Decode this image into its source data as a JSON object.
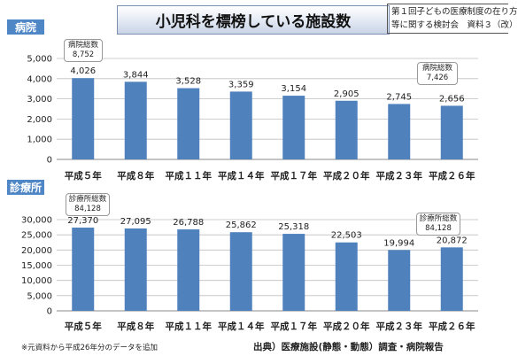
{
  "title": "小児科を標榜している施設数",
  "meeting_note": {
    "line1": "第１回子どもの医療制度の在り方",
    "line2": "等に関する検討会　資料３（改）"
  },
  "colors": {
    "bar": "#4f81bd",
    "label_bg": "#4f86c6",
    "grid": "#bfbfbf"
  },
  "callouts": {
    "hospital_first": {
      "title": "病院総数",
      "value": "8,752"
    },
    "hospital_last": {
      "title": "病院総数",
      "value": "7,426"
    },
    "clinic_first": {
      "title": "診療所総数",
      "value": "84,128"
    },
    "clinic_last": {
      "title": "診療所総数",
      "value": "84,128"
    }
  },
  "footnote": "※元資料から平成26年分のデータを追加",
  "source": "出典）医療施設(静態・動態）調査・病院報告",
  "chart_data": [
    {
      "type": "bar",
      "title": "病院",
      "categories": [
        "平成５年",
        "平成８年",
        "平成１１年",
        "平成１４年",
        "平成１７年",
        "平成２０年",
        "平成２３年",
        "平成２６年"
      ],
      "values": [
        4026,
        3844,
        3528,
        3359,
        3154,
        2905,
        2745,
        2656
      ],
      "value_labels": [
        "4,026",
        "3,844",
        "3,528",
        "3,359",
        "3,154",
        "2,905",
        "2,745",
        "2,656"
      ],
      "ylim": [
        0,
        5000
      ],
      "yticks": [
        0,
        1000,
        2000,
        3000,
        4000,
        5000
      ],
      "ytick_labels": [
        "0",
        "1,000",
        "2,000",
        "3,000",
        "4,000",
        "5,000"
      ],
      "grid": true
    },
    {
      "type": "bar",
      "title": "診療所",
      "categories": [
        "平成５年",
        "平成８年",
        "平成１１年",
        "平成１４年",
        "平成１７年",
        "平成２０年",
        "平成２３年",
        "平成２６年"
      ],
      "values": [
        27370,
        27095,
        26788,
        25862,
        25318,
        22503,
        19994,
        20872
      ],
      "value_labels": [
        "27,370",
        "27,095",
        "26,788",
        "25,862",
        "25,318",
        "22,503",
        "19,994",
        "20,872"
      ],
      "ylim": [
        0,
        30000
      ],
      "yticks": [
        0,
        5000,
        10000,
        15000,
        20000,
        25000,
        30000
      ],
      "ytick_labels": [
        "0",
        "5,000",
        "10,000",
        "15,000",
        "20,000",
        "25,000",
        "30,000"
      ],
      "grid": true
    }
  ]
}
